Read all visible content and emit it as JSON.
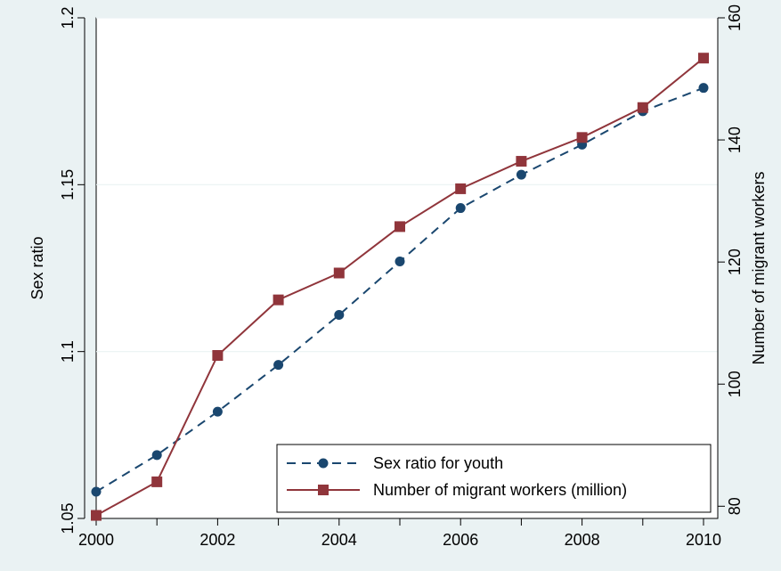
{
  "chart_data": {
    "type": "line",
    "title": "",
    "xlabel": "",
    "ylabel": "Sex ratio",
    "y2label": "Number of migrant workers",
    "x": [
      2000,
      2001,
      2002,
      2003,
      2004,
      2005,
      2006,
      2007,
      2008,
      2009,
      2010
    ],
    "x_ticks": [
      "2000",
      "2002",
      "2004",
      "2006",
      "2008",
      "2010"
    ],
    "xlim": [
      2000,
      2010
    ],
    "ylim": [
      1.05,
      1.2
    ],
    "y_ticks": [
      "1.05",
      "1.1",
      "1.15",
      "1.2"
    ],
    "y2lim": [
      78,
      160
    ],
    "y2_ticks": [
      "80",
      "100",
      "120",
      "140",
      "160"
    ],
    "grid": true,
    "legend_position": "bottom-right",
    "series": [
      {
        "name": "Sex ratio for youth",
        "axis": "left",
        "values": [
          1.058,
          1.069,
          1.082,
          1.096,
          1.111,
          1.127,
          1.143,
          1.153,
          1.162,
          1.172,
          1.179
        ],
        "color": "#1a476f",
        "line_style": "dashed",
        "marker": "circle"
      },
      {
        "name": "Number of migrant workers (million)",
        "axis": "right",
        "values": [
          78.5,
          84.0,
          104.7,
          113.8,
          118.2,
          125.8,
          132.0,
          136.5,
          140.4,
          145.3,
          153.4
        ],
        "color": "#90353b",
        "line_style": "solid",
        "marker": "square"
      }
    ]
  }
}
